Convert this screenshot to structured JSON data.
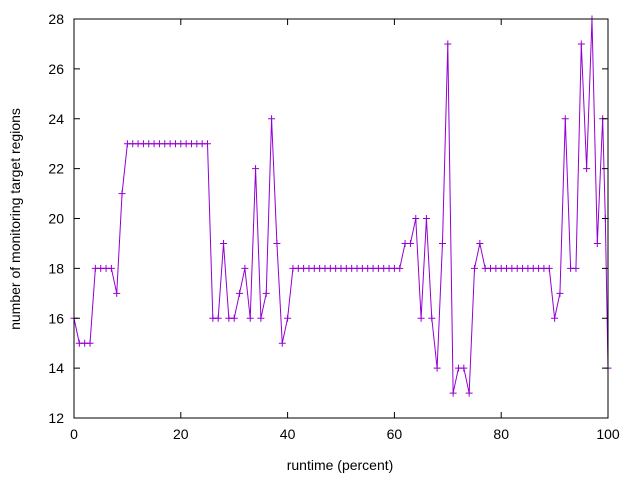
{
  "chart_data": {
    "type": "line",
    "title": "",
    "xlabel": "runtime (percent)",
    "ylabel": "number of monitoring target regions",
    "xlim": [
      0,
      100
    ],
    "ylim": [
      12,
      28
    ],
    "x_ticks": [
      0,
      20,
      40,
      60,
      80,
      100
    ],
    "y_ticks": [
      12,
      14,
      16,
      18,
      20,
      22,
      24,
      26,
      28
    ],
    "grid": false,
    "legend": "none",
    "marker": "plus",
    "series": [
      {
        "color": "#9400d3",
        "points": [
          [
            0,
            16
          ],
          [
            1,
            15
          ],
          [
            2,
            15
          ],
          [
            3,
            15
          ],
          [
            4,
            18
          ],
          [
            5,
            18
          ],
          [
            6,
            18
          ],
          [
            7,
            18
          ],
          [
            8,
            17
          ],
          [
            9,
            21
          ],
          [
            10,
            23
          ],
          [
            11,
            23
          ],
          [
            12,
            23
          ],
          [
            13,
            23
          ],
          [
            14,
            23
          ],
          [
            15,
            23
          ],
          [
            16,
            23
          ],
          [
            17,
            23
          ],
          [
            18,
            23
          ],
          [
            19,
            23
          ],
          [
            20,
            23
          ],
          [
            21,
            23
          ],
          [
            22,
            23
          ],
          [
            23,
            23
          ],
          [
            24,
            23
          ],
          [
            25,
            23
          ],
          [
            26,
            16
          ],
          [
            27,
            16
          ],
          [
            28,
            19
          ],
          [
            29,
            16
          ],
          [
            30,
            16
          ],
          [
            31,
            17
          ],
          [
            32,
            18
          ],
          [
            33,
            16
          ],
          [
            34,
            22
          ],
          [
            35,
            16
          ],
          [
            36,
            17
          ],
          [
            37,
            24
          ],
          [
            38,
            19
          ],
          [
            39,
            15
          ],
          [
            40,
            16
          ],
          [
            41,
            18
          ],
          [
            42,
            18
          ],
          [
            43,
            18
          ],
          [
            44,
            18
          ],
          [
            45,
            18
          ],
          [
            46,
            18
          ],
          [
            47,
            18
          ],
          [
            48,
            18
          ],
          [
            49,
            18
          ],
          [
            50,
            18
          ],
          [
            51,
            18
          ],
          [
            52,
            18
          ],
          [
            53,
            18
          ],
          [
            54,
            18
          ],
          [
            55,
            18
          ],
          [
            56,
            18
          ],
          [
            57,
            18
          ],
          [
            58,
            18
          ],
          [
            59,
            18
          ],
          [
            60,
            18
          ],
          [
            61,
            18
          ],
          [
            62,
            19
          ],
          [
            63,
            19
          ],
          [
            64,
            20
          ],
          [
            65,
            16
          ],
          [
            66,
            20
          ],
          [
            67,
            16
          ],
          [
            68,
            14
          ],
          [
            69,
            19
          ],
          [
            70,
            27
          ],
          [
            71,
            13
          ],
          [
            72,
            14
          ],
          [
            73,
            14
          ],
          [
            74,
            13
          ],
          [
            75,
            18
          ],
          [
            76,
            19
          ],
          [
            77,
            18
          ],
          [
            78,
            18
          ],
          [
            79,
            18
          ],
          [
            80,
            18
          ],
          [
            81,
            18
          ],
          [
            82,
            18
          ],
          [
            83,
            18
          ],
          [
            84,
            18
          ],
          [
            85,
            18
          ],
          [
            86,
            18
          ],
          [
            87,
            18
          ],
          [
            88,
            18
          ],
          [
            89,
            18
          ],
          [
            90,
            16
          ],
          [
            91,
            17
          ],
          [
            92,
            24
          ],
          [
            93,
            18
          ],
          [
            94,
            18
          ],
          [
            95,
            27
          ],
          [
            96,
            22
          ],
          [
            97,
            28
          ],
          [
            98,
            19
          ],
          [
            99,
            24
          ],
          [
            99.5,
            20
          ],
          [
            100,
            14
          ]
        ]
      }
    ]
  }
}
